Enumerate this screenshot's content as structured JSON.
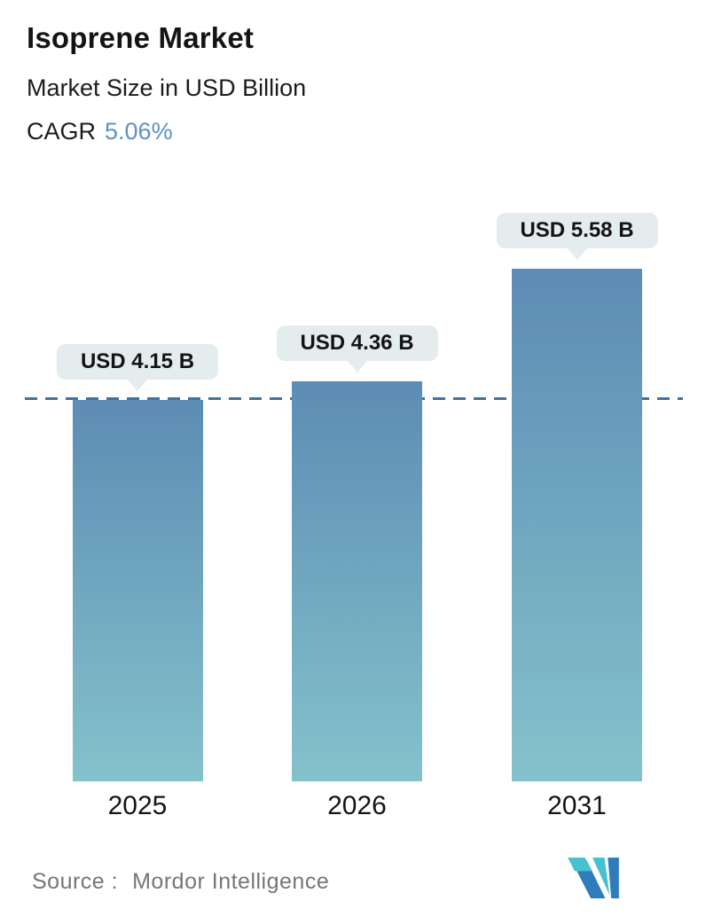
{
  "header": {
    "title": "Isoprene Market",
    "subtitle": "Market Size in USD Billion",
    "cagr_label": "CAGR",
    "cagr_value": "5.06%"
  },
  "chart_data": {
    "type": "bar",
    "title": "Isoprene Market",
    "subtitle": "Market Size in USD Billion",
    "unit": "USD Billion",
    "cagr_percent": 5.06,
    "categories": [
      "2025",
      "2026",
      "2031"
    ],
    "values": [
      4.15,
      4.36,
      5.58
    ],
    "value_labels": [
      "USD 4.15 B",
      "USD 4.36 B",
      "USD 5.58 B"
    ],
    "ylim": [
      0,
      6.5
    ],
    "grid": false,
    "legend": "none",
    "reference_line": {
      "at_value": 4.15,
      "style": "dashed"
    },
    "bar_color_top": "#5d8cb4",
    "bar_color_bottom": "#84c2cb",
    "reference_line_color": "#3f739e",
    "label_pill_bg": "#e5ecee",
    "accent_color": "#5e92c3"
  },
  "footer": {
    "source_label": "Source :",
    "source_name": "Mordor Intelligence"
  }
}
